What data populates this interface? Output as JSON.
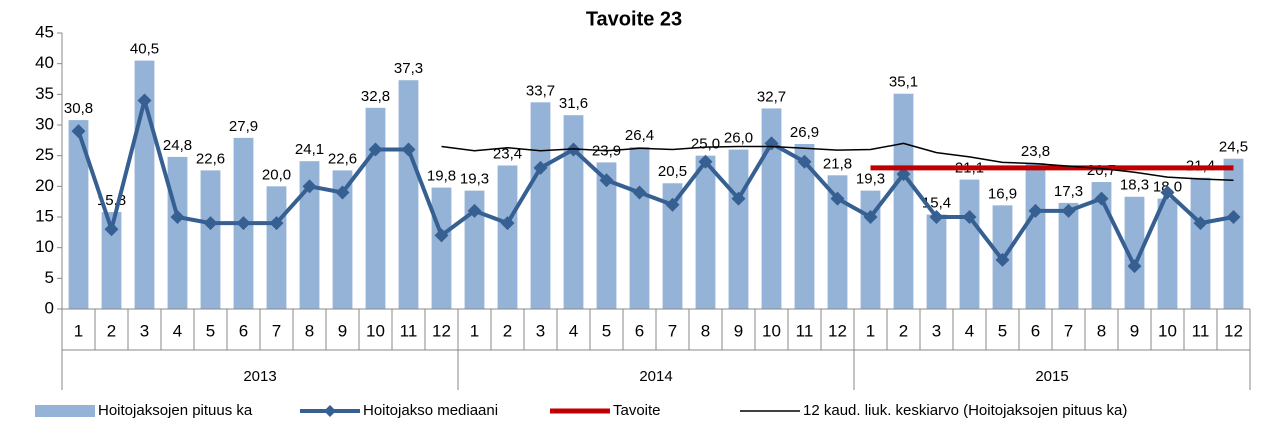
{
  "chart_data": {
    "type": "bar",
    "title": "Tavoite 23",
    "categories": [
      "1",
      "2",
      "3",
      "4",
      "5",
      "6",
      "7",
      "8",
      "9",
      "10",
      "11",
      "12",
      "1",
      "2",
      "3",
      "4",
      "5",
      "6",
      "7",
      "8",
      "9",
      "10",
      "11",
      "12",
      "1",
      "2",
      "3",
      "4",
      "5",
      "6",
      "7",
      "8",
      "9",
      "10",
      "11",
      "12"
    ],
    "year_groups": [
      "2013",
      "2014",
      "2015"
    ],
    "ylim": [
      0,
      45
    ],
    "yticks": [
      0,
      5,
      10,
      15,
      20,
      25,
      30,
      35,
      40,
      45
    ],
    "series": [
      {
        "name": "Hoitojaksojen pituus ka",
        "type": "bar",
        "color": "#95b3d7",
        "values": [
          30.8,
          15.8,
          40.5,
          24.8,
          22.6,
          27.9,
          20.0,
          24.1,
          22.6,
          32.8,
          37.3,
          19.8,
          19.3,
          23.4,
          33.7,
          31.6,
          23.9,
          26.4,
          20.5,
          25.0,
          26.0,
          32.7,
          26.9,
          21.8,
          19.3,
          35.1,
          15.4,
          21.1,
          16.9,
          23.8,
          17.3,
          20.7,
          18.3,
          18.0,
          21.4,
          24.5
        ],
        "value_labels": [
          "30,8",
          "15,8",
          "40,5",
          "24,8",
          "22,6",
          "27,9",
          "20,0",
          "24,1",
          "22,6",
          "32,8",
          "37,3",
          "19,8",
          "19,3",
          "23,4",
          "33,7",
          "31,6",
          "23,9",
          "26,4",
          "20,5",
          "25,0",
          "26,0",
          "32,7",
          "26,9",
          "21,8",
          "19,3",
          "35,1",
          "15,4",
          "21,1",
          "16,9",
          "23,8",
          "17,3",
          "20,7",
          "18,3",
          "18,0",
          "21,4",
          "24,5"
        ]
      },
      {
        "name": "Hoitojakso mediaani",
        "type": "line",
        "color": "#376092",
        "marker": "diamond",
        "values": [
          29,
          13,
          34,
          15,
          14,
          14,
          14,
          20,
          19,
          26,
          26,
          12,
          16,
          14,
          23,
          26,
          21,
          19,
          17,
          24,
          18,
          27,
          24,
          18,
          15,
          22,
          15,
          15,
          8,
          16,
          16,
          18,
          7,
          19,
          14,
          15
        ]
      },
      {
        "name": "Tavoite",
        "type": "line",
        "color": "#c00000",
        "values": [
          null,
          null,
          null,
          null,
          null,
          null,
          null,
          null,
          null,
          null,
          null,
          null,
          null,
          null,
          null,
          null,
          null,
          null,
          null,
          null,
          null,
          null,
          null,
          null,
          23,
          23,
          23,
          23,
          23,
          23,
          23,
          23,
          23,
          23,
          23,
          23
        ]
      },
      {
        "name": "12 kaud. liuk. keskiarvo (Hoitojaksojen pituus ka)",
        "type": "line",
        "color": "#000000",
        "values": [
          null,
          null,
          null,
          null,
          null,
          null,
          null,
          null,
          null,
          null,
          null,
          26.5,
          25.8,
          26.3,
          25.8,
          26.1,
          25.8,
          26.2,
          26.0,
          26.4,
          26.5,
          26.5,
          26.2,
          25.9,
          26.0,
          27.0,
          25.5,
          24.8,
          23.9,
          23.7,
          23.3,
          22.9,
          22.3,
          21.5,
          21.2,
          21.0
        ]
      }
    ]
  }
}
